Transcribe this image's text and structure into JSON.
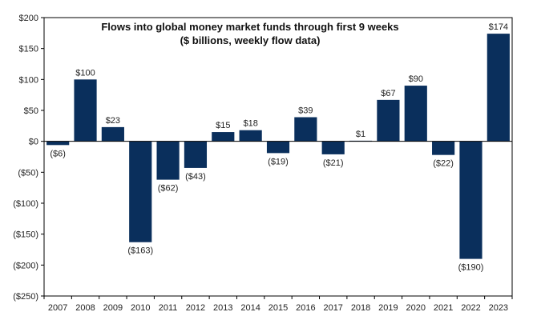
{
  "chart_data": {
    "type": "bar",
    "title": "Flows into global money market funds through first 9 weeks",
    "subtitle": "($ billions, weekly flow data)",
    "xlabel": "",
    "ylabel": "",
    "categories": [
      "2007",
      "2008",
      "2009",
      "2010",
      "2011",
      "2012",
      "2013",
      "2014",
      "2015",
      "2016",
      "2017",
      "2018",
      "2019",
      "2020",
      "2021",
      "2022",
      "2023"
    ],
    "values": [
      -6,
      100,
      23,
      -163,
      -62,
      -43,
      15,
      18,
      -19,
      39,
      -21,
      1,
      67,
      90,
      -22,
      -190,
      174
    ],
    "data_labels": [
      "($6)",
      "$100",
      "$23",
      "($163)",
      "($62)",
      "($43)",
      "$15",
      "$18",
      "($19)",
      "$39",
      "($21)",
      "$1",
      "$67",
      "$90",
      "($22)",
      "($190)",
      "$174"
    ],
    "ylim": [
      -250,
      200
    ],
    "yticks": [
      200,
      150,
      100,
      50,
      0,
      -50,
      -100,
      -150,
      -200,
      -250
    ],
    "ytick_labels": [
      "$200",
      "$150",
      "$100",
      "$50",
      "$0",
      "($50)",
      "($100)",
      "($150)",
      "($200)",
      "($250)"
    ],
    "grid": false,
    "legend": "none",
    "colors": {
      "bar": "#0a2f5c",
      "axis": "#000000"
    }
  }
}
